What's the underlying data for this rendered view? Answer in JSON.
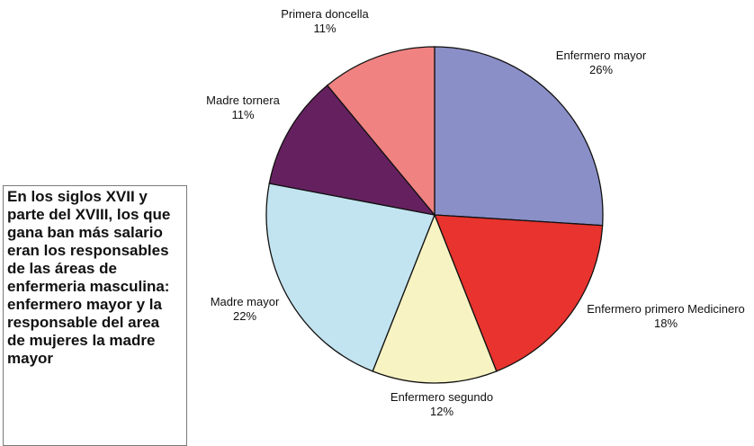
{
  "note": {
    "lines": [
      "En los siglos XVII y",
      "parte del XVIII, los que",
      "gana ban más salario",
      "eran los responsables",
      "de las áreas de",
      "enfermeria masculina:",
      "enfermero mayor y la",
      "responsable del area",
      "de mujeres la madre",
      "mayor"
    ]
  },
  "chart_data": {
    "type": "pie",
    "title": "",
    "slices": [
      {
        "name": "Enfermero mayor",
        "value": 26,
        "label": "26%",
        "color": "#8b8fc8"
      },
      {
        "name": "Enfermero primero Medicinero",
        "value": 18,
        "label": "18%",
        "color": "#e8332e"
      },
      {
        "name": "Enfermero segundo",
        "value": 12,
        "label": "12%",
        "color": "#f8f3c3"
      },
      {
        "name": "Madre mayor",
        "value": 22,
        "label": "22%",
        "color": "#c2e4f0"
      },
      {
        "name": "Madre tornera",
        "value": 11,
        "label": "11%",
        "color": "#65215f"
      },
      {
        "name": "Primera doncella",
        "value": 11,
        "label": "11%",
        "color": "#f08382"
      }
    ],
    "start_angle_deg": 0,
    "direction": "clockwise",
    "legend": "none",
    "labels_outside": true
  }
}
